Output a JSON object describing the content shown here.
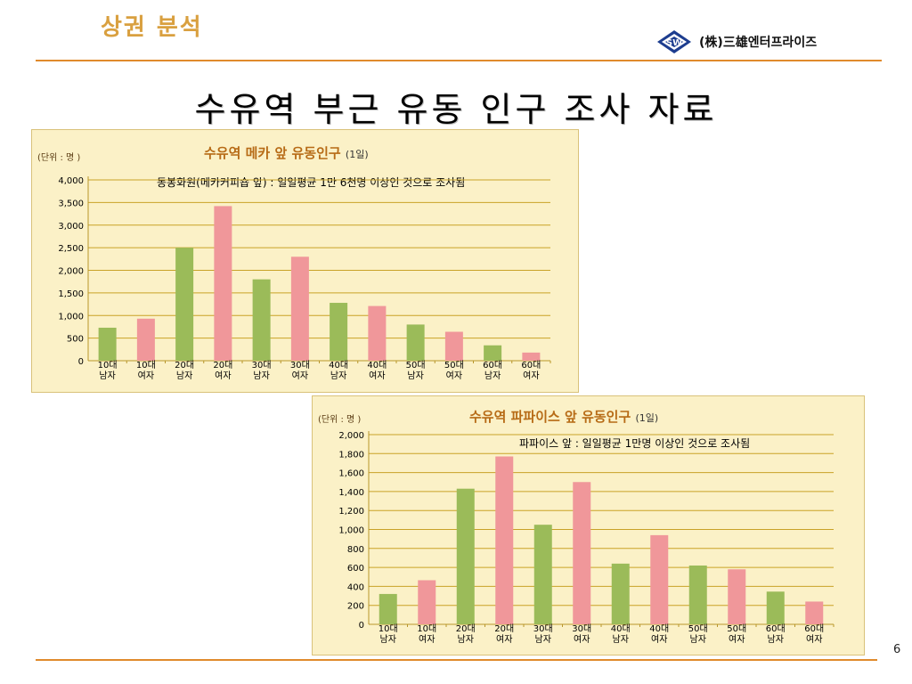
{
  "header": {
    "section_title": "상권 분석",
    "company": "(株)三雄엔터프라이즈",
    "logo_mark": "SW"
  },
  "main_title": "수유역 부근 유동 인구 조사 자료",
  "page_number": "6",
  "colors": {
    "male": "#9bbb59",
    "female": "#f0979a",
    "gridline": "#c9a227",
    "panel_bg": "#fbf1c7",
    "title_accent": "#b76b16",
    "rule": "#e08a2c"
  },
  "chart_data": [
    {
      "type": "bar",
      "title": "수유역 메카  앞 유동인구",
      "title_suffix": "(1일)",
      "unit_label": "(단위 : 명 )",
      "annotation": "동봉화원(메카커피숍 앞) : 일일평균 1만 6천명 이상인 것으로 조사됨",
      "categories": [
        [
          "10대",
          "남자"
        ],
        [
          "10대",
          "여자"
        ],
        [
          "20대",
          "남자"
        ],
        [
          "20대",
          "여자"
        ],
        [
          "30대",
          "남자"
        ],
        [
          "30대",
          "여자"
        ],
        [
          "40대",
          "남자"
        ],
        [
          "40대",
          "여자"
        ],
        [
          "50대",
          "남자"
        ],
        [
          "50대",
          "여자"
        ],
        [
          "60대",
          "남자"
        ],
        [
          "60대",
          "여자"
        ]
      ],
      "values": [
        730,
        930,
        2500,
        3420,
        1800,
        2300,
        1280,
        1210,
        800,
        640,
        340,
        180
      ],
      "bar_colors": [
        "male",
        "female",
        "male",
        "female",
        "male",
        "female",
        "male",
        "female",
        "male",
        "female",
        "male",
        "female"
      ],
      "ylim": [
        0,
        4000
      ],
      "yticks": [
        "0",
        "500",
        "1,000",
        "1,500",
        "2,000",
        "2,500",
        "3,000",
        "3,500",
        "4,000"
      ],
      "ytick_values": [
        0,
        500,
        1000,
        1500,
        2000,
        2500,
        3000,
        3500,
        4000
      ],
      "grid": true
    },
    {
      "type": "bar",
      "title": "수유역 파파이스  앞 유동인구",
      "title_suffix": "(1일)",
      "unit_label": "(단위 : 명 )",
      "annotation": "파파이스 앞 : 일일평균 1만명 이상인 것으로 조사됨",
      "categories": [
        [
          "10대",
          "남자"
        ],
        [
          "10대",
          "여자"
        ],
        [
          "20대",
          "남자"
        ],
        [
          "20대",
          "여자"
        ],
        [
          "30대",
          "남자"
        ],
        [
          "30대",
          "여자"
        ],
        [
          "40대",
          "남자"
        ],
        [
          "40대",
          "여자"
        ],
        [
          "50대",
          "남자"
        ],
        [
          "50대",
          "여자"
        ],
        [
          "60대",
          "남자"
        ],
        [
          "60대",
          "여자"
        ]
      ],
      "values": [
        320,
        465,
        1430,
        1770,
        1050,
        1500,
        640,
        940,
        620,
        580,
        345,
        240
      ],
      "bar_colors": [
        "male",
        "female",
        "male",
        "female",
        "male",
        "female",
        "male",
        "female",
        "male",
        "female",
        "male",
        "female"
      ],
      "ylim": [
        0,
        2000
      ],
      "yticks": [
        "0",
        "200",
        "400",
        "600",
        "800",
        "1,000",
        "1,200",
        "1,400",
        "1,600",
        "1,800",
        "2,000"
      ],
      "ytick_values": [
        0,
        200,
        400,
        600,
        800,
        1000,
        1200,
        1400,
        1600,
        1800,
        2000
      ],
      "grid": true
    }
  ]
}
